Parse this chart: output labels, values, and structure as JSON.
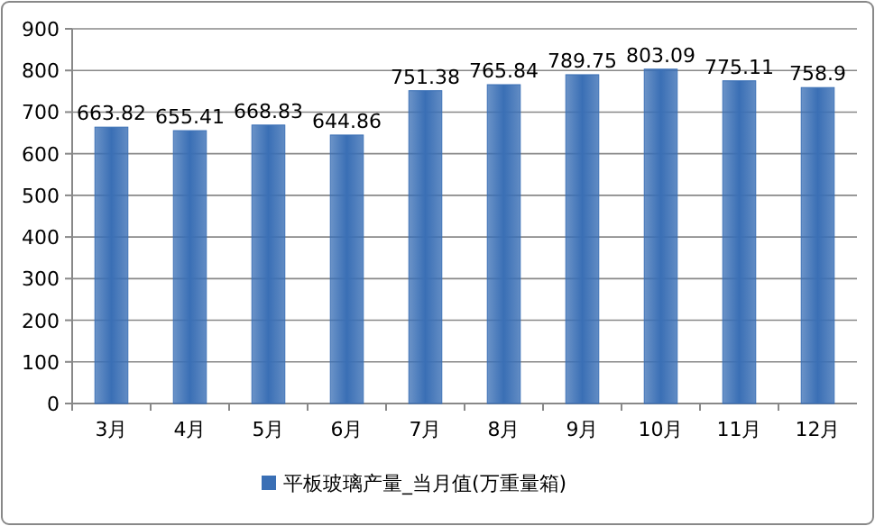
{
  "chart_data": {
    "type": "bar",
    "categories": [
      "3月",
      "4月",
      "5月",
      "6月",
      "7月",
      "8月",
      "9月",
      "10月",
      "11月",
      "12月"
    ],
    "series": [
      {
        "name": "平板玻璃产量_当月值(万重量箱)",
        "color": "#3a6fb5",
        "values": [
          663.82,
          655.41,
          668.83,
          644.86,
          751.38,
          765.84,
          789.75,
          803.09,
          775.11,
          758.9
        ]
      }
    ],
    "ylim": [
      0,
      900
    ],
    "yticks": [
      0,
      100,
      200,
      300,
      400,
      500,
      600,
      700,
      800,
      900
    ],
    "grid": "y",
    "legend": "bottom",
    "data_labels": true
  }
}
